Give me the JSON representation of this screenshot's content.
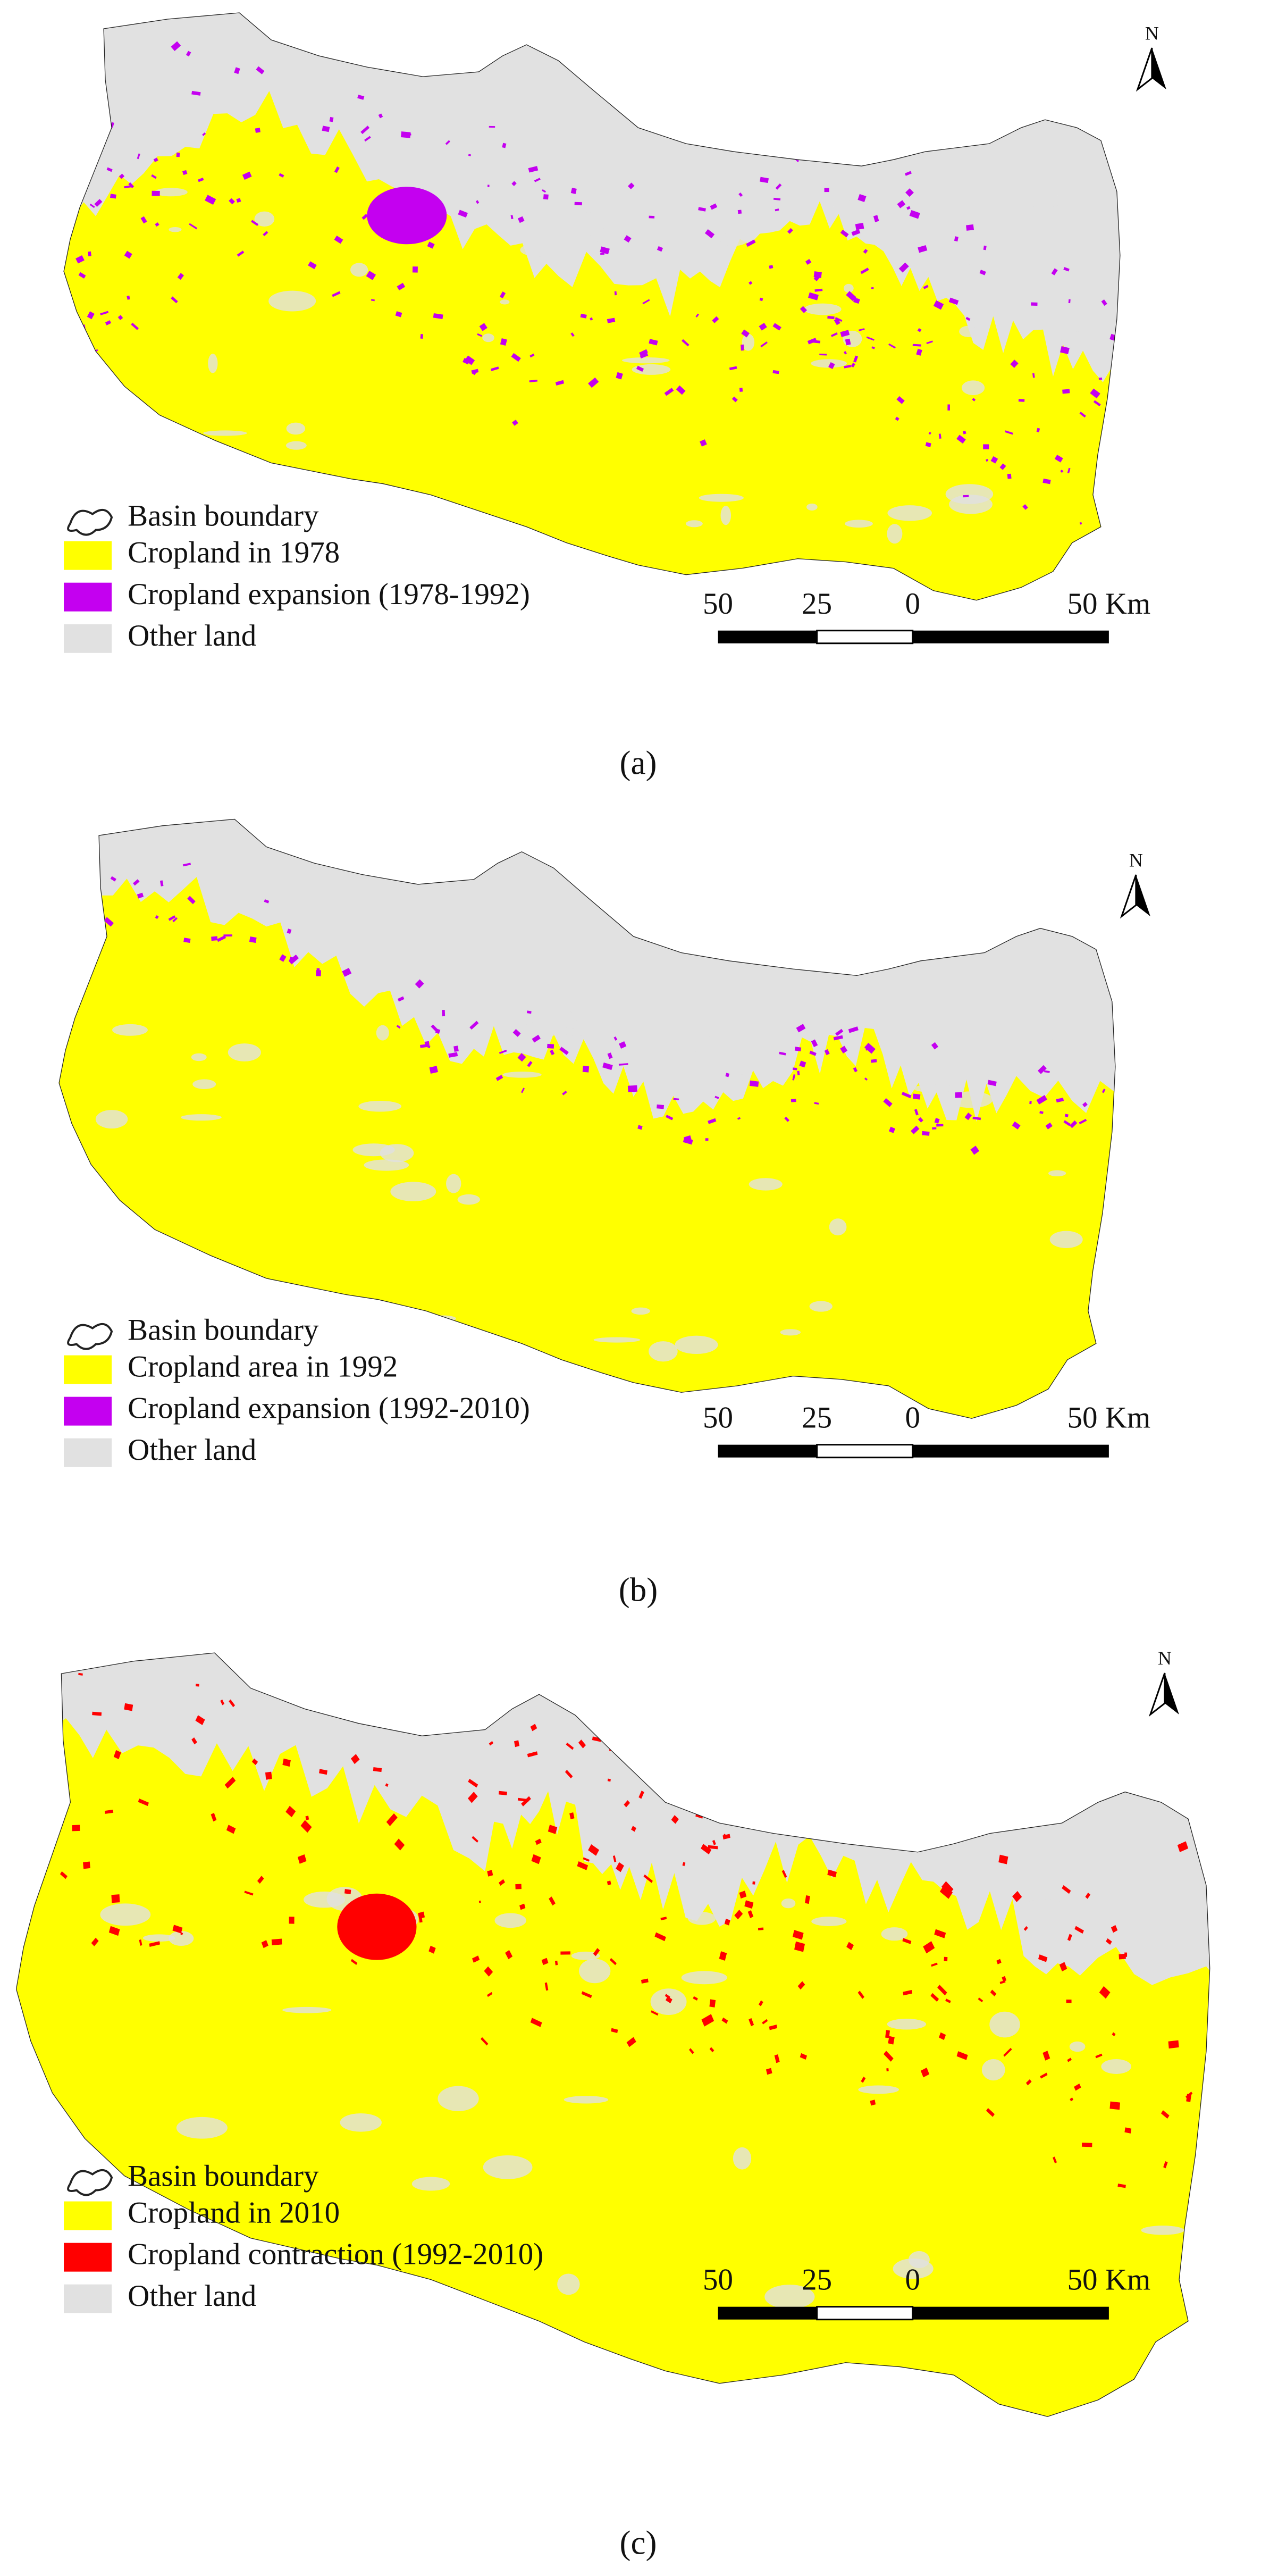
{
  "panels": [
    {
      "label": "(a)",
      "north": "N",
      "legend": [
        "Basin boundary",
        "Cropland in 1978",
        "Cropland expansion (1978-1992)",
        "Other land"
      ],
      "scale": [
        "50",
        "25",
        "0",
        "50 Km"
      ],
      "colors": {
        "crop": "#ffff00",
        "change": "#c400f0",
        "other": "#e1e1e1"
      }
    },
    {
      "label": "(b)",
      "north": "N",
      "legend": [
        "Basin boundary",
        "Cropland area in 1992",
        "Cropland expansion (1992-2010)",
        "Other land"
      ],
      "scale": [
        "50",
        "25",
        "0",
        "50 Km"
      ],
      "colors": {
        "crop": "#ffff00",
        "change": "#c400f0",
        "other": "#e1e1e1"
      }
    },
    {
      "label": "(c)",
      "north": "N",
      "legend": [
        "Basin boundary",
        "Cropland in 2010",
        "Cropland contraction (1992-2010)",
        "Other land"
      ],
      "scale": [
        "50",
        "25",
        "0",
        "50 Km"
      ],
      "colors": {
        "crop": "#ffff00",
        "change": "#ff0000",
        "other": "#e1e1e1"
      }
    }
  ]
}
